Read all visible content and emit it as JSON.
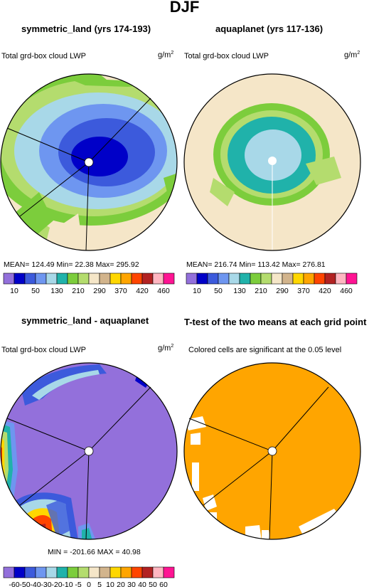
{
  "title": "DJF",
  "panels": [
    {
      "title": "symmetric_land (yrs 174-193)",
      "left_label": "Total grd-box cloud LWP",
      "unit_base": "g/m",
      "unit_exp": "2",
      "stats": "MEAN= 124.49   Min=  22.38   Max= 295.92"
    },
    {
      "title": "aquaplanet (yrs 117-136)",
      "left_label": "Total grd-box cloud LWP",
      "unit_base": "g/m",
      "unit_exp": "2",
      "stats": "MEAN= 216.74   Min= 113.42   Max= 276.81"
    },
    {
      "title": "symmetric_land - aquaplanet",
      "left_label": "Total grd-box cloud LWP",
      "unit_base": "g/m",
      "unit_exp": "2",
      "stats": "MIN = -201.66  MAX =   40.98"
    },
    {
      "title": "T-test of the two means at each grid point",
      "left_label": "Colored cells are significant at the 0.05 level"
    }
  ],
  "colorbar_main": {
    "colors": [
      "#9370db",
      "#0000c8",
      "#3c5adc",
      "#6e96f0",
      "#a8d8e8",
      "#20b2aa",
      "#7ccd3c",
      "#b4dc6e",
      "#f5e6c8",
      "#d2b48c",
      "#ffd700",
      "#ffa500",
      "#ff4500",
      "#b22222",
      "#ffb6c1",
      "#ff1493"
    ],
    "ticks": [
      "10",
      "50",
      "130",
      "210",
      "290",
      "370",
      "420",
      "460"
    ]
  },
  "colorbar_diff": {
    "colors": [
      "#9370db",
      "#0000c8",
      "#3c5adc",
      "#6e96f0",
      "#a8d8e8",
      "#20b2aa",
      "#7ccd3c",
      "#b4dc6e",
      "#f5e6c8",
      "#d2b48c",
      "#ffd700",
      "#ffa500",
      "#ff4500",
      "#b22222",
      "#ffb6c1",
      "#ff1493"
    ],
    "ticks": [
      "-60",
      "-50",
      "-40",
      "-30",
      "-20",
      "-10",
      "-5",
      "0",
      "5",
      "10",
      "20",
      "30",
      "40",
      "50",
      "60"
    ]
  }
}
